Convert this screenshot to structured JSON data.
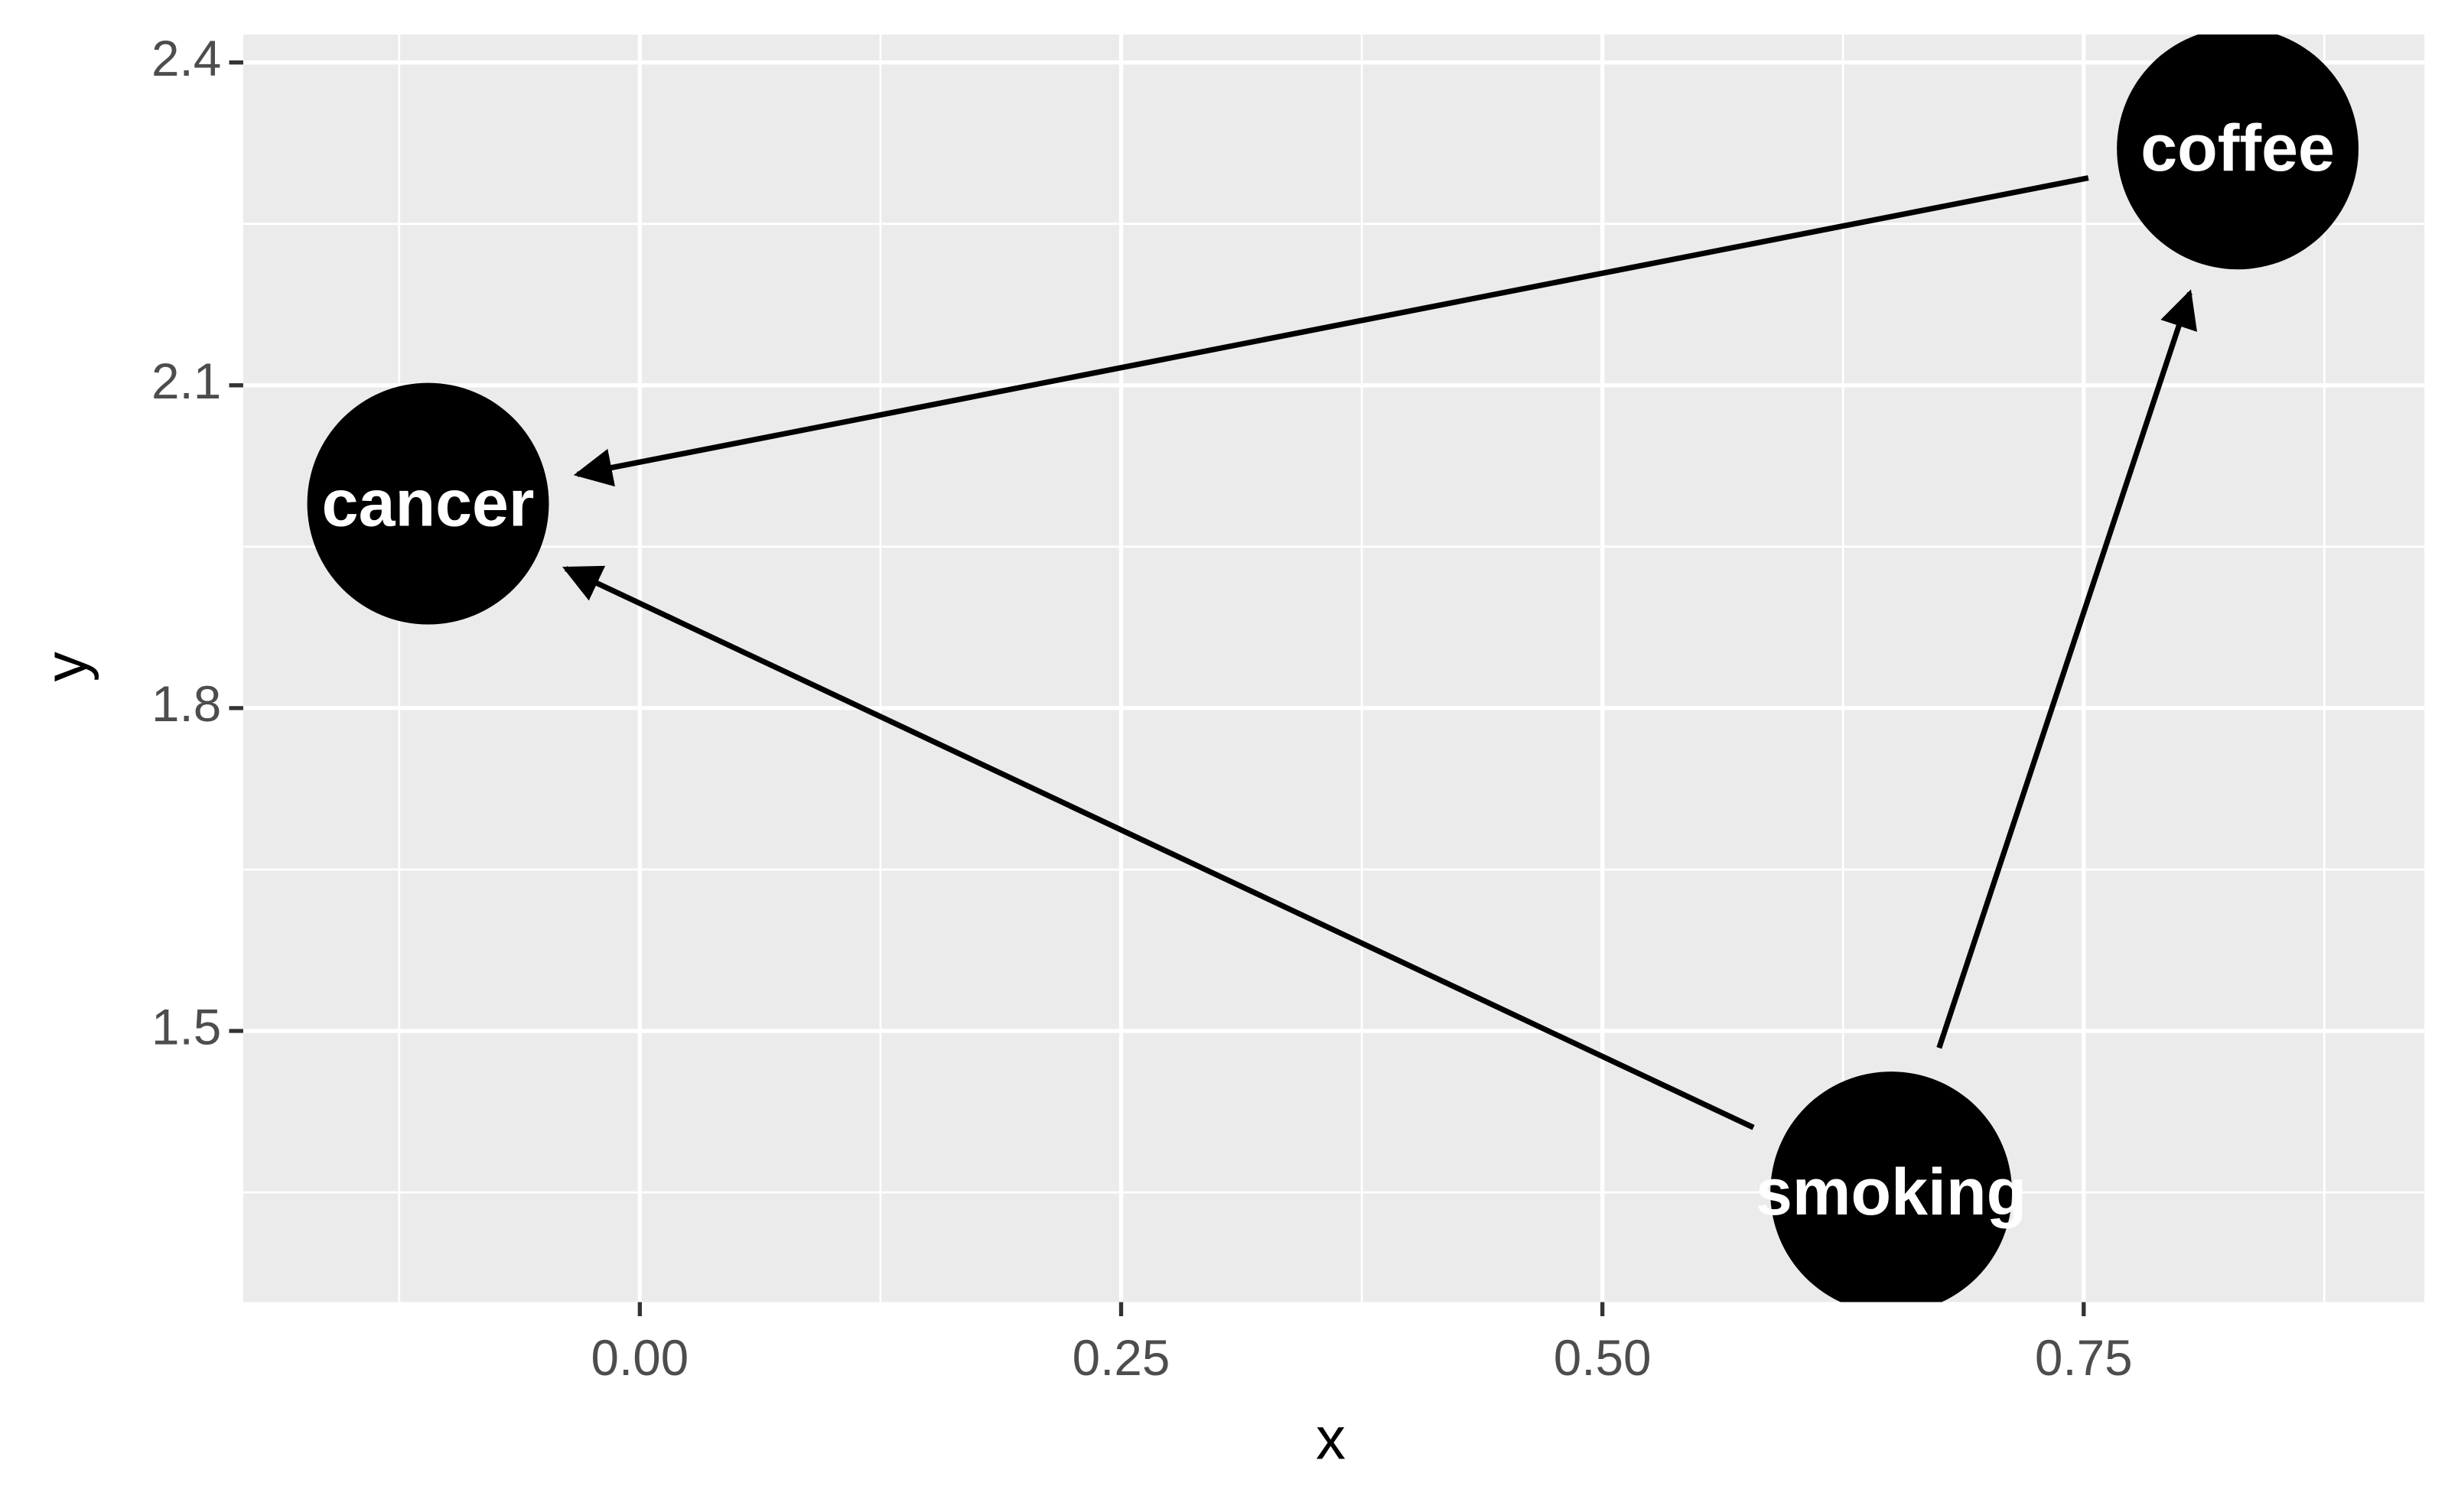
{
  "chart_data": {
    "type": "dag",
    "x_label": "x",
    "y_label": "y",
    "xlim": [
      -0.206,
      0.927
    ],
    "ylim": [
      1.248,
      2.426
    ],
    "xticks": [
      {
        "value": 0,
        "label": "0.00"
      },
      {
        "value": 0.25,
        "label": "0.25"
      },
      {
        "value": 0.5,
        "label": "0.50"
      },
      {
        "value": 0.75,
        "label": "0.75"
      }
    ],
    "yticks": [
      1.5,
      1.8,
      2.1,
      2.4
    ],
    "grid": true,
    "node_color": "#000000",
    "edge_color": "#000000",
    "nodes": [
      {
        "name": "cancer",
        "x": -0.11,
        "y": 1.99
      },
      {
        "name": "coffee",
        "x": 0.83,
        "y": 2.32
      },
      {
        "name": "smoking",
        "x": 0.65,
        "y": 1.35
      }
    ],
    "edges": [
      [
        1,
        0
      ],
      [
        2,
        0
      ],
      [
        2,
        1
      ]
    ]
  }
}
